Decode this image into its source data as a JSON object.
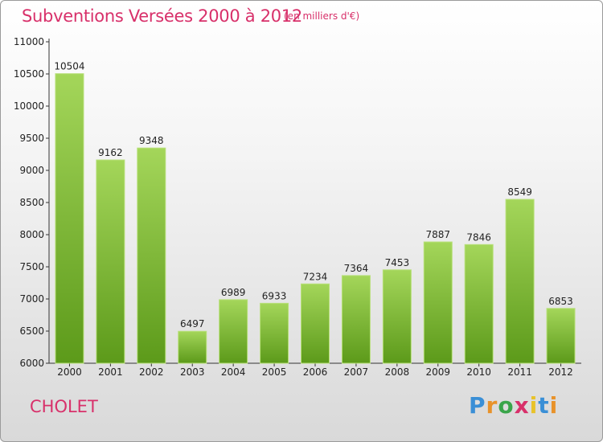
{
  "header": {
    "title": "Subventions Versées 2000 à 2012",
    "subtitle": "(en milliers d'€)"
  },
  "footer": {
    "city": "CHOLET",
    "logo_letters": [
      "P",
      "r",
      "o",
      "x",
      "i",
      "t",
      "i"
    ],
    "logo_colors": [
      "#3a8fd6",
      "#e8922a",
      "#3aa54a",
      "#d8306a",
      "#e8c22a",
      "#3a8fd6",
      "#e8922a"
    ]
  },
  "colors": {
    "bar_top": "#a4d65a",
    "bar_bottom": "#5c9a1a",
    "accent": "#d8306a"
  },
  "chart_data": {
    "type": "bar",
    "categories": [
      "2000",
      "2001",
      "2002",
      "2003",
      "2004",
      "2005",
      "2006",
      "2007",
      "2008",
      "2009",
      "2010",
      "2011",
      "2012"
    ],
    "values": [
      10504,
      9162,
      9348,
      6497,
      6989,
      6933,
      7234,
      7364,
      7453,
      7887,
      7846,
      8549,
      6853
    ],
    "ylim": [
      6000,
      11000
    ],
    "yticks": [
      6000,
      6500,
      7000,
      7500,
      8000,
      8500,
      9000,
      9500,
      10000,
      10500,
      11000
    ],
    "grid": false,
    "title": "Subventions Versées 2000 à 2012",
    "xlabel": "",
    "ylabel": ""
  }
}
